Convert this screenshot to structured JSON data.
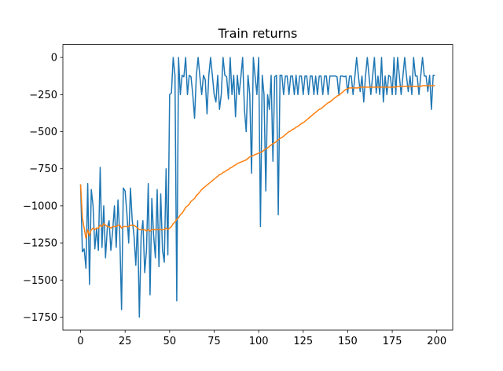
{
  "chart_data": {
    "type": "line",
    "title": "Train returns",
    "x": [
      0,
      1,
      2,
      3,
      4,
      5,
      6,
      7,
      8,
      9,
      10,
      11,
      12,
      13,
      14,
      15,
      16,
      17,
      18,
      19,
      20,
      21,
      22,
      23,
      24,
      25,
      26,
      27,
      28,
      29,
      30,
      31,
      32,
      33,
      34,
      35,
      36,
      37,
      38,
      39,
      40,
      41,
      42,
      43,
      44,
      45,
      46,
      47,
      48,
      49,
      50,
      51,
      52,
      53,
      54,
      55,
      56,
      57,
      58,
      59,
      60,
      61,
      62,
      63,
      64,
      65,
      66,
      67,
      68,
      69,
      70,
      71,
      72,
      73,
      74,
      75,
      76,
      77,
      78,
      79,
      80,
      81,
      82,
      83,
      84,
      85,
      86,
      87,
      88,
      89,
      90,
      91,
      92,
      93,
      94,
      95,
      96,
      97,
      98,
      99,
      100,
      101,
      102,
      103,
      104,
      105,
      106,
      107,
      108,
      109,
      110,
      111,
      112,
      113,
      114,
      115,
      116,
      117,
      118,
      119,
      120,
      121,
      122,
      123,
      124,
      125,
      126,
      127,
      128,
      129,
      130,
      131,
      132,
      133,
      134,
      135,
      136,
      137,
      138,
      139,
      140,
      141,
      142,
      143,
      144,
      145,
      146,
      147,
      148,
      149,
      150,
      151,
      152,
      153,
      154,
      155,
      156,
      157,
      158,
      159,
      160,
      161,
      162,
      163,
      164,
      165,
      166,
      167,
      168,
      169,
      170,
      171,
      172,
      173,
      174,
      175,
      176,
      177,
      178,
      179,
      180,
      181,
      182,
      183,
      184,
      185,
      186,
      187,
      188,
      189,
      190,
      191,
      192,
      193,
      194,
      195,
      196,
      197,
      198,
      199
    ],
    "series": [
      {
        "color": "#1f77b4",
        "values": [
          -855,
          -1310,
          -1290,
          -1420,
          -850,
          -1530,
          -890,
          -1000,
          -1290,
          -1150,
          -1300,
          -740,
          -1280,
          -1000,
          -1350,
          -1150,
          -1100,
          -1300,
          -1170,
          -1000,
          -1280,
          -960,
          -1200,
          -1700,
          -880,
          -900,
          -1050,
          -1250,
          -880,
          -1100,
          -1200,
          -1400,
          -1100,
          -1750,
          -1200,
          -1100,
          -1450,
          -1300,
          -850,
          -1600,
          -950,
          -1200,
          -1350,
          -890,
          -1410,
          -920,
          -1300,
          -1380,
          -750,
          -1330,
          -250,
          -240,
          0,
          -120,
          -1640,
          0,
          -250,
          -120,
          -130,
          0,
          -250,
          -120,
          -130,
          -250,
          -410,
          -120,
          0,
          -130,
          -250,
          -120,
          -150,
          -380,
          -120,
          0,
          -120,
          -250,
          -300,
          -120,
          -350,
          -250,
          0,
          -120,
          -130,
          -280,
          0,
          -250,
          -120,
          -400,
          -120,
          -250,
          -130,
          0,
          -350,
          -500,
          -120,
          -250,
          -780,
          0,
          -130,
          -250,
          0,
          -1140,
          -120,
          -250,
          -900,
          -250,
          -350,
          -120,
          -700,
          -130,
          -120,
          -1060,
          -120,
          -120,
          -250,
          -125,
          -125,
          -250,
          -125,
          -125,
          -250,
          -120,
          -250,
          -125,
          -125,
          -250,
          -125,
          -125,
          -250,
          -125,
          -125,
          -250,
          -125,
          -250,
          -125,
          -125,
          -250,
          -125,
          -125,
          -250,
          -125,
          -125,
          -125,
          -125,
          -130,
          -250,
          -125,
          -125,
          -130,
          -125,
          -240,
          -125,
          -125,
          -250,
          -130,
          0,
          -125,
          -230,
          -125,
          -300,
          -125,
          0,
          -130,
          -250,
          -125,
          0,
          -240,
          -125,
          -250,
          0,
          -300,
          -125,
          -250,
          -120,
          -130,
          -250,
          0,
          -250,
          0,
          -125,
          -250,
          -125,
          0,
          -125,
          -230,
          -125,
          -250,
          0,
          -125,
          -125,
          -250,
          -125,
          0,
          -125,
          -125,
          -230,
          -120,
          -350,
          -120,
          -120
        ]
      },
      {
        "color": "#ff7f0e",
        "values": [
          -855,
          -1080,
          -1150,
          -1220,
          -1160,
          -1200,
          -1160,
          -1150,
          -1160,
          -1150,
          -1150,
          -1130,
          -1140,
          -1120,
          -1130,
          -1140,
          -1140,
          -1150,
          -1140,
          -1140,
          -1140,
          -1130,
          -1130,
          -1150,
          -1140,
          -1140,
          -1140,
          -1140,
          -1130,
          -1130,
          -1130,
          -1140,
          -1150,
          -1160,
          -1160,
          -1160,
          -1160,
          -1170,
          -1160,
          -1170,
          -1160,
          -1160,
          -1160,
          -1160,
          -1160,
          -1160,
          -1160,
          -1160,
          -1150,
          -1160,
          -1150,
          -1140,
          -1120,
          -1110,
          -1090,
          -1080,
          -1060,
          -1050,
          -1030,
          -1010,
          -1000,
          -990,
          -970,
          -960,
          -950,
          -930,
          -920,
          -905,
          -890,
          -880,
          -870,
          -860,
          -850,
          -840,
          -830,
          -820,
          -810,
          -800,
          -790,
          -785,
          -775,
          -770,
          -760,
          -755,
          -745,
          -740,
          -730,
          -725,
          -715,
          -710,
          -705,
          -700,
          -695,
          -690,
          -680,
          -670,
          -665,
          -660,
          -655,
          -650,
          -645,
          -640,
          -635,
          -625,
          -615,
          -610,
          -600,
          -590,
          -580,
          -575,
          -565,
          -555,
          -545,
          -540,
          -530,
          -520,
          -510,
          -500,
          -495,
          -485,
          -480,
          -470,
          -465,
          -455,
          -445,
          -440,
          -430,
          -420,
          -410,
          -400,
          -390,
          -380,
          -370,
          -360,
          -350,
          -345,
          -335,
          -325,
          -315,
          -305,
          -300,
          -290,
          -280,
          -270,
          -260,
          -255,
          -245,
          -235,
          -225,
          -215,
          -210,
          -205,
          -205,
          -205,
          -205,
          -205,
          -205,
          -200,
          -200,
          -200,
          -200,
          -200,
          -200,
          -200,
          -200,
          -200,
          -200,
          -200,
          -200,
          -200,
          -200,
          -200,
          -200,
          -200,
          -200,
          -200,
          -200,
          -200,
          -195,
          -195,
          -195,
          -195,
          -195,
          -195,
          -195,
          -195,
          -195,
          -195,
          -195,
          -195,
          -195,
          -195,
          -190,
          -190,
          -190,
          -190,
          -190,
          -190,
          -190,
          -190
        ]
      }
    ],
    "xlim": [
      -9.95,
      208.95
    ],
    "xticks": [
      0,
      25,
      50,
      75,
      100,
      125,
      150,
      175,
      200
    ],
    "ylim": [
      -1837.5,
      87.5
    ],
    "yticks": [
      0,
      {
        "value": -250,
        "label": "−250"
      },
      {
        "value": -500,
        "label": "−500"
      },
      {
        "value": -750,
        "label": "−750"
      },
      {
        "value": -1000,
        "label": "−1000"
      },
      {
        "value": -1250,
        "label": "−1250"
      },
      {
        "value": -1500,
        "label": "−1500"
      },
      {
        "value": -1750,
        "label": "−1750"
      }
    ]
  }
}
